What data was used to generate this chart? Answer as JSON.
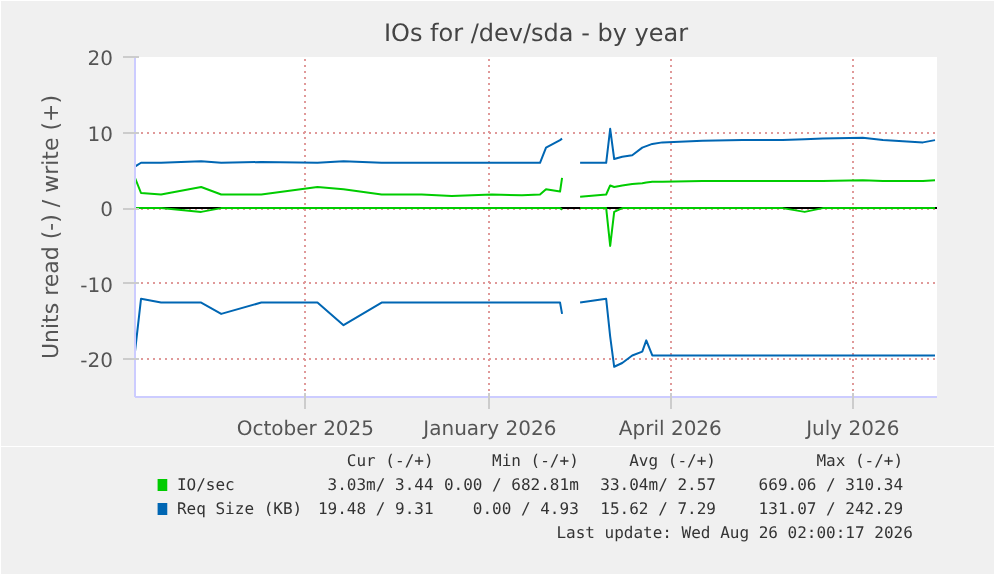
{
  "chart_data": {
    "type": "line",
    "title": "IOs for /dev/sda - by year",
    "ylabel": "Units read (-) / write (+)",
    "x": [
      "2025-07-22",
      "2025-07-25",
      "2025-08-04",
      "2025-08-24",
      "2025-09-03",
      "2025-09-23",
      "2025-10-21",
      "2025-11-03",
      "2025-11-22",
      "2025-12-12",
      "2025-12-27",
      "2026-01-16",
      "2026-01-31",
      "2026-02-09",
      "2026-02-12",
      "2026-02-19",
      "2026-02-20",
      "2026-02-25",
      "2026-03-01",
      "2026-03-14",
      "2026-03-16",
      "2026-03-18",
      "2026-03-22",
      "2026-03-27",
      "2026-04-01",
      "2026-04-03",
      "2026-04-06",
      "2026-04-11",
      "2026-05-01",
      "2026-05-21",
      "2026-06-10",
      "2026-06-21",
      "2026-06-30",
      "2026-07-20",
      "2026-07-30",
      "2026-08-19",
      "2026-08-25"
    ],
    "series": [
      {
        "name": "IO/sec",
        "color": "#00cc00",
        "values": [
          4,
          2,
          1.8,
          2.8,
          1.8,
          1.8,
          2.8,
          2.5,
          1.8,
          1.8,
          1.6,
          1.8,
          1.7,
          1.8,
          2.5,
          2.2,
          4,
          null,
          1.5,
          1.8,
          3,
          2.8,
          3,
          3.2,
          3.3,
          3.4,
          3.5,
          3.5,
          3.6,
          3.6,
          3.6,
          3.6,
          3.6,
          3.7,
          3.6,
          3.6,
          3.7
        ]
      },
      {
        "name": "Req Size (KB)",
        "color": "#0066b3",
        "values": [
          5.5,
          6,
          6,
          6.2,
          6,
          6.1,
          6,
          6.2,
          6,
          6,
          6,
          6,
          6,
          6,
          8,
          9,
          9.2,
          null,
          6,
          6,
          10.5,
          6.5,
          6.8,
          7,
          8,
          8.2,
          8.5,
          8.7,
          8.9,
          9,
          9,
          9.1,
          9.2,
          9.3,
          9,
          8.7,
          9
        ]
      },
      {
        "color": "#00cc00",
        "values": [
          0,
          0,
          0,
          -0.5,
          0,
          0,
          0,
          0,
          0,
          0,
          0,
          0,
          0,
          0,
          0,
          0,
          -0.2,
          null,
          0,
          0,
          -5,
          -0.5,
          0,
          0,
          0,
          0,
          0,
          0,
          0,
          0,
          0,
          -0.5,
          0,
          0,
          0,
          0,
          0
        ]
      },
      {
        "color": "#0066b3",
        "values": [
          -19,
          -12,
          -12.5,
          -12.5,
          -14,
          -12.5,
          -12.5,
          -15.5,
          -12.5,
          -12.5,
          -12.5,
          -12.5,
          -12.5,
          -12.5,
          -12.5,
          -12.5,
          -14,
          null,
          -12.5,
          -12,
          -17,
          -21,
          -20.5,
          -19.5,
          -19,
          -17.5,
          -19.5,
          -19.5,
          -19.5,
          -19.5,
          -19.5,
          -19.5,
          -19.5,
          -19.5,
          -19.5,
          -19.5,
          -19.5
        ]
      }
    ],
    "xlim": [
      "2025-07-22",
      "2026-08-26"
    ],
    "xticks": [
      {
        "value": "2025-10-15",
        "label": "October 2025"
      },
      {
        "value": "2026-01-15",
        "label": "January 2026"
      },
      {
        "value": "2026-04-15",
        "label": "April 2026"
      },
      {
        "value": "2026-07-15",
        "label": "July 2026"
      }
    ],
    "ylim": [
      -25,
      20
    ],
    "yticks": [
      -20,
      -10,
      0,
      10,
      20
    ],
    "ref_lines": [
      {
        "axis": "y",
        "value": 0,
        "color": "#000000"
      }
    ],
    "grid": true,
    "legend": "bottom",
    "annotations": [
      "Cur (-/+)",
      "Min (-/+)",
      "Avg (-/+)",
      "Max (-/+)",
      "3.03m/ 3.44",
      "0.00 / 682.81m",
      "33.04m/ 2.57",
      "669.06 / 310.34",
      "19.48 / 9.31",
      "0.00 / 4.93",
      "15.62 / 7.29",
      "131.07 / 242.29",
      "Last update: Wed Aug 26 02:00:17 2026"
    ]
  }
}
